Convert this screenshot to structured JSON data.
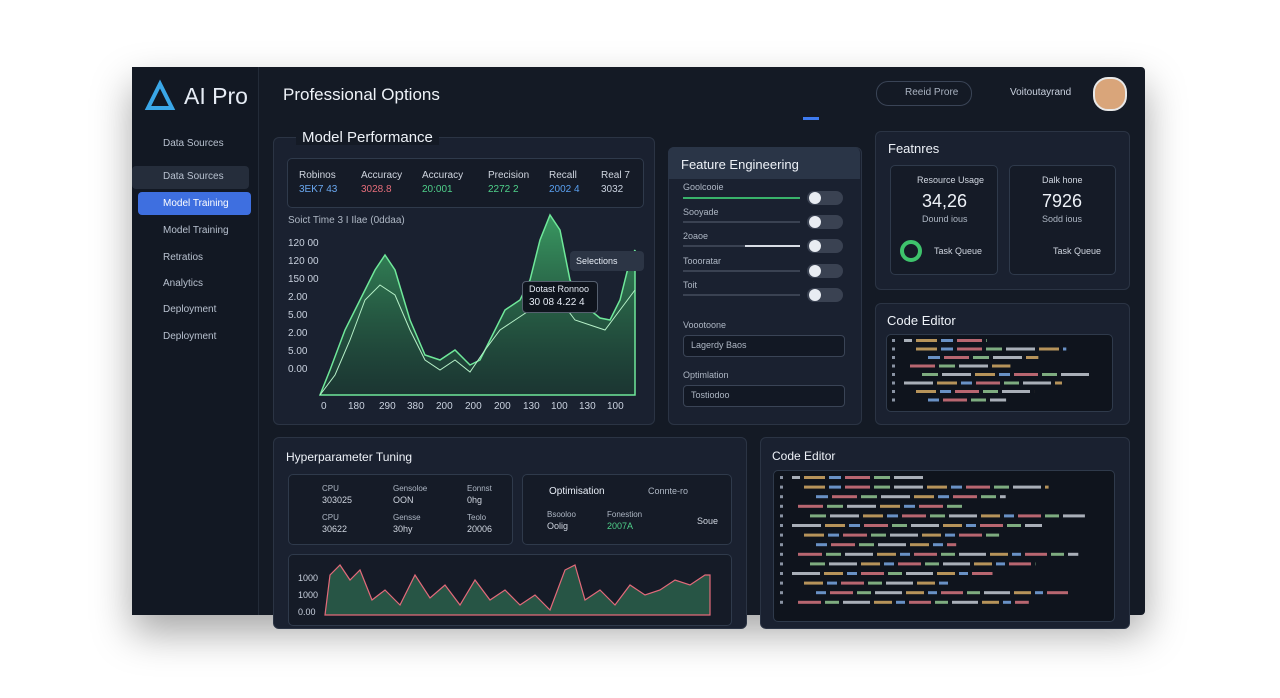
{
  "sidebar": {
    "logo": "AI Pro",
    "nav": [
      "Data Sources",
      "Data Sources",
      "Model Training",
      "Model Training",
      "Retratios",
      "Analytics",
      "Deployment",
      "Deployment"
    ]
  },
  "header": {
    "title": "Professional Options",
    "search": "Reeid Prore",
    "user": "Voitoutayrand"
  },
  "model_performance": {
    "title": "Model Performance",
    "metrics": [
      {
        "label": "Robinos",
        "value": "3EK7 43"
      },
      {
        "label": "Accuracy",
        "value": "3028.8"
      },
      {
        "label": "Accuracy",
        "value": "20:001"
      },
      {
        "label": "Precision",
        "value": "2272 2"
      },
      {
        "label": "Recall",
        "value": "2002 4"
      },
      {
        "label": "Real 7",
        "value": "3032"
      }
    ],
    "chart_label": "Soict Time 3 I Ilae (0ddaa)",
    "y_labels": [
      "120 00",
      "120 00",
      "150 00",
      "2.00",
      "5.00",
      "2.00",
      "5.00",
      "0.00"
    ],
    "x_labels": [
      "0",
      "180",
      "290",
      "380",
      "200",
      "200",
      "200",
      "130",
      "100",
      "130",
      "100"
    ],
    "tooltip": {
      "title": "Dotast Ronnoo",
      "value": "30 08 4.22 4"
    },
    "button": "Selections"
  },
  "feature_engineering": {
    "title": "Feature Engineering",
    "rows": [
      "Goolcooie",
      "Sooyade",
      "2oaoe",
      "Toooratar",
      "Toit"
    ],
    "selects": [
      {
        "label": "Voootoone",
        "value": "Lagerdy Baos"
      },
      {
        "label": "Optimlation",
        "value": "Tostiodoo"
      }
    ]
  },
  "features": {
    "title": "Featnres",
    "cards": [
      {
        "label": "Resource Usage",
        "value": "34,26",
        "sub": "Dound ious",
        "footer": "Task Queue"
      },
      {
        "label": "Dalk hone",
        "value": "7926",
        "sub": "Sodd ious",
        "footer": "Task Queue"
      }
    ]
  },
  "code_editor_small": {
    "title": "Code Editor"
  },
  "hyperparameter": {
    "title": "Hyperparameter Tuning",
    "stats": [
      {
        "label": "CPU",
        "value": "303025"
      },
      {
        "label": "Gensoloe",
        "value": "OON"
      },
      {
        "label": "Eonnst",
        "value": "0hg"
      },
      {
        "label": "CPU",
        "value": "30622"
      },
      {
        "label": "Gensse",
        "value": "30hy"
      },
      {
        "label": "Teolo",
        "value": "20006"
      }
    ],
    "optimisation": {
      "title": "Optimisation",
      "mode": "Connte-ro",
      "items": [
        {
          "label": "Bsooloo",
          "value": "Oolig"
        },
        {
          "label": "Fonestion",
          "value": "2007A"
        }
      ],
      "status": "Soue"
    },
    "y_labels": [
      "1000",
      "1000",
      "0.00"
    ]
  },
  "code_editor_large": {
    "title": "Code Editor"
  }
}
